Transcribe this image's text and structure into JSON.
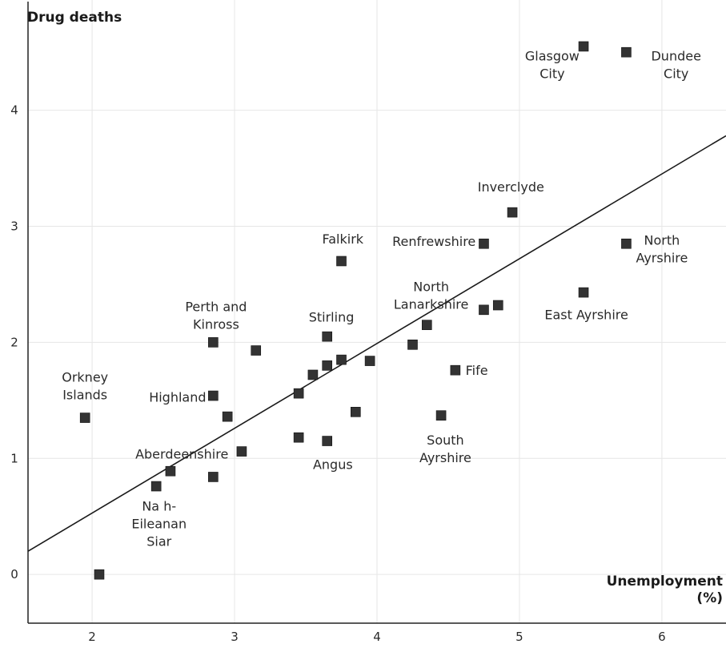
{
  "chart_data": {
    "type": "scatter",
    "title": "",
    "ylabel": "Drug deaths",
    "xlabel": "Unemployment (%)",
    "xlabel_lines": [
      "Unemployment",
      "(%)"
    ],
    "xlim": [
      1.55,
      6.45
    ],
    "ylim": [
      -0.42,
      4.95
    ],
    "xticks": [
      2,
      3,
      4,
      5,
      6
    ],
    "yticks": [
      0,
      1,
      2,
      3,
      4
    ],
    "grid": false,
    "marker_color": "#333333",
    "trendline": {
      "x": [
        1.55,
        6.45
      ],
      "y": [
        0.2,
        3.78
      ]
    },
    "points": [
      {
        "x": 5.45,
        "y": 4.55
      },
      {
        "x": 5.75,
        "y": 4.5
      },
      {
        "x": 4.95,
        "y": 3.12
      },
      {
        "x": 4.75,
        "y": 2.85
      },
      {
        "x": 5.75,
        "y": 2.85
      },
      {
        "x": 3.75,
        "y": 2.7
      },
      {
        "x": 5.45,
        "y": 2.43
      },
      {
        "x": 4.75,
        "y": 2.28
      },
      {
        "x": 4.85,
        "y": 2.32
      },
      {
        "x": 4.35,
        "y": 2.15
      },
      {
        "x": 4.25,
        "y": 1.98
      },
      {
        "x": 3.65,
        "y": 2.05
      },
      {
        "x": 3.65,
        "y": 1.8
      },
      {
        "x": 3.75,
        "y": 1.85
      },
      {
        "x": 3.95,
        "y": 1.84
      },
      {
        "x": 3.55,
        "y": 1.72
      },
      {
        "x": 3.45,
        "y": 1.56
      },
      {
        "x": 4.55,
        "y": 1.76
      },
      {
        "x": 3.85,
        "y": 1.4
      },
      {
        "x": 4.45,
        "y": 1.37
      },
      {
        "x": 2.85,
        "y": 2.0
      },
      {
        "x": 3.15,
        "y": 1.93
      },
      {
        "x": 2.85,
        "y": 1.54
      },
      {
        "x": 2.95,
        "y": 1.36
      },
      {
        "x": 3.45,
        "y": 1.18
      },
      {
        "x": 3.65,
        "y": 1.15
      },
      {
        "x": 3.05,
        "y": 1.06
      },
      {
        "x": 1.95,
        "y": 1.35
      },
      {
        "x": 2.55,
        "y": 0.89
      },
      {
        "x": 2.45,
        "y": 0.76
      },
      {
        "x": 2.85,
        "y": 0.84
      },
      {
        "x": 2.05,
        "y": 0.0
      }
    ],
    "annotations": [
      {
        "lines": [
          "Glasgow",
          "City"
        ],
        "x": 5.23,
        "y": 4.43,
        "anchor": "middle"
      },
      {
        "lines": [
          "Dundee",
          "City"
        ],
        "x": 6.1,
        "y": 4.43,
        "anchor": "middle"
      },
      {
        "lines": [
          "Inverclyde"
        ],
        "x": 4.94,
        "y": 3.3,
        "anchor": "middle"
      },
      {
        "lines": [
          "Renfrewshire"
        ],
        "x": 4.4,
        "y": 2.83,
        "anchor": "middle"
      },
      {
        "lines": [
          "North",
          "Ayrshire"
        ],
        "x": 6.0,
        "y": 2.84,
        "anchor": "middle"
      },
      {
        "lines": [
          "Falkirk"
        ],
        "x": 3.76,
        "y": 2.85,
        "anchor": "middle"
      },
      {
        "lines": [
          "North",
          "Lanarkshire"
        ],
        "x": 4.38,
        "y": 2.44,
        "anchor": "middle"
      },
      {
        "lines": [
          "East Ayrshire"
        ],
        "x": 5.47,
        "y": 2.2,
        "anchor": "middle"
      },
      {
        "lines": [
          "Perth and",
          "Kinross"
        ],
        "x": 2.87,
        "y": 2.27,
        "anchor": "middle"
      },
      {
        "lines": [
          "Stirling"
        ],
        "x": 3.68,
        "y": 2.18,
        "anchor": "middle"
      },
      {
        "lines": [
          "Fife"
        ],
        "x": 4.7,
        "y": 1.72,
        "anchor": "middle"
      },
      {
        "lines": [
          "Orkney",
          "Islands"
        ],
        "x": 1.95,
        "y": 1.66,
        "anchor": "middle"
      },
      {
        "lines": [
          "Highland"
        ],
        "x": 2.6,
        "y": 1.49,
        "anchor": "middle"
      },
      {
        "lines": [
          "South",
          "Ayrshire"
        ],
        "x": 4.48,
        "y": 1.12,
        "anchor": "middle"
      },
      {
        "lines": [
          "Aberdeenshire"
        ],
        "x": 2.63,
        "y": 1.0,
        "anchor": "middle"
      },
      {
        "lines": [
          "Angus"
        ],
        "x": 3.69,
        "y": 0.91,
        "anchor": "middle"
      },
      {
        "lines": [
          "Na h-",
          "Eileanan",
          "Siar"
        ],
        "x": 2.47,
        "y": 0.55,
        "anchor": "middle"
      }
    ]
  }
}
